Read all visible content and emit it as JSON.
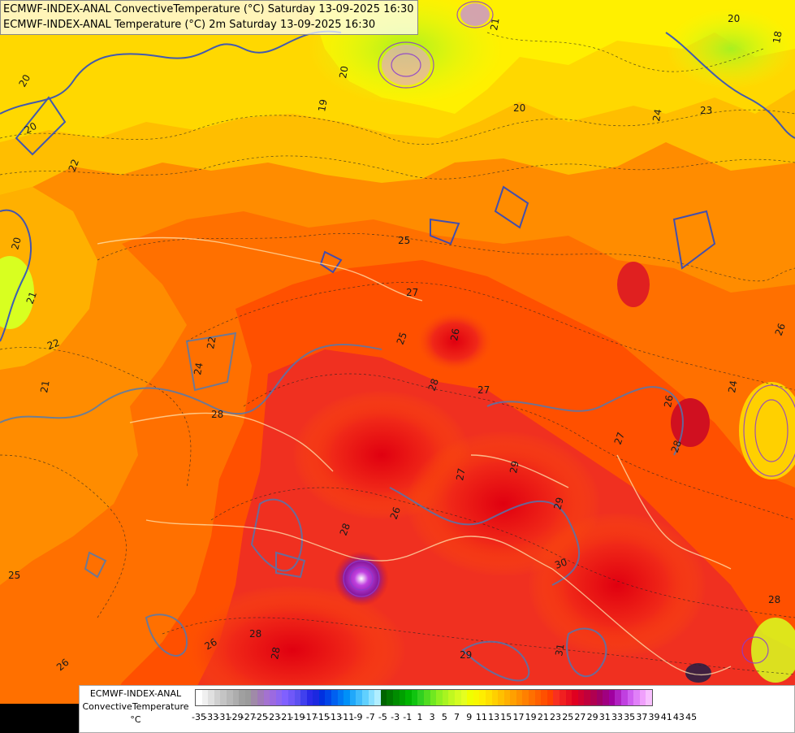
{
  "title_lines": [
    "ECMWF-INDEX-ANAL ConvectiveTemperature (°C) Saturday 13-09-2025 16:30",
    "ECMWF-INDEX-ANAL Temperature (°C) 2m Saturday 13-09-2025 16:30"
  ],
  "legend": {
    "model": "ECMWF-INDEX-ANAL",
    "parameter": "ConvectiveTemperature",
    "unit": "°C",
    "tick_labels": [
      "-35",
      "-33",
      "-31",
      "-29",
      "-27",
      "-25",
      "-23",
      "-21",
      "-19",
      "-17",
      "-15",
      "-13",
      "-11",
      "-9",
      "-7",
      "-5",
      "-3",
      "-1",
      "1",
      "3",
      "5",
      "7",
      "9",
      "11",
      "13",
      "15",
      "17",
      "19",
      "21",
      "23",
      "25",
      "27",
      "29",
      "31",
      "33",
      "35",
      "37",
      "39",
      "41",
      "43",
      "45"
    ],
    "colors": [
      "#ffffff",
      "#f0f0f0",
      "#e0e0e0",
      "#d0d0d0",
      "#c4c4c4",
      "#b8b8b8",
      "#adadad",
      "#a0a0a0",
      "#9b9b9b",
      "#a08aa8",
      "#a07ab8",
      "#a472d0",
      "#9c6ae0",
      "#8e66f0",
      "#8060ff",
      "#7058f8",
      "#5c50f0",
      "#4040ee",
      "#2a2ae8",
      "#1c28e0",
      "#0030e0",
      "#0045e8",
      "#0060f0",
      "#0078f4",
      "#0090f8",
      "#20a8fa",
      "#40bcfc",
      "#60d0fe",
      "#8ae0ff",
      "#b0eeff",
      "#006400",
      "#007800",
      "#008c00",
      "#00a000",
      "#00b400",
      "#10c410",
      "#30d020",
      "#50dc20",
      "#70e820",
      "#90f020",
      "#a8f420",
      "#c0f820",
      "#d4fc20",
      "#e4ff20",
      "#f0ff00",
      "#f8f800",
      "#ffee00",
      "#ffe000",
      "#ffd000",
      "#ffc000",
      "#ffb000",
      "#ffa000",
      "#ff9000",
      "#ff8000",
      "#ff7000",
      "#ff6000",
      "#ff5000",
      "#ff4000",
      "#f83020",
      "#f02020",
      "#e81020",
      "#e00020",
      "#d00030",
      "#c0003c",
      "#b00050",
      "#a00064",
      "#a00080",
      "#a000a0",
      "#b020c0",
      "#c040e0",
      "#d060f0",
      "#e080f8",
      "#f0a0fc",
      "#f8c0fe"
    ]
  },
  "map": {
    "temperature_labels": [
      "20",
      "20",
      "22",
      "20",
      "19",
      "20",
      "21",
      "20",
      "21",
      "23",
      "24",
      "22",
      "21",
      "25",
      "27",
      "25",
      "26",
      "27",
      "28",
      "27",
      "29",
      "27",
      "28",
      "29",
      "26",
      "28",
      "26",
      "26",
      "28",
      "28",
      "30",
      "26",
      "28",
      "29",
      "31",
      "26",
      "24",
      "22",
      "24",
      "25",
      "28",
      "20",
      "18"
    ]
  }
}
